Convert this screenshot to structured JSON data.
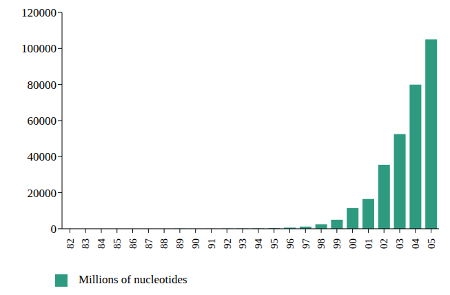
{
  "chart_data": {
    "type": "bar",
    "categories": [
      "82",
      "83",
      "84",
      "85",
      "86",
      "87",
      "88",
      "89",
      "90",
      "91",
      "92",
      "93",
      "94",
      "95",
      "96",
      "97",
      "98",
      "99",
      "00",
      "01",
      "02",
      "03",
      "04",
      "05"
    ],
    "series": [
      {
        "name": "Millions of nucleotides",
        "color": "#2e9b80",
        "values": [
          0.7,
          2,
          3,
          5,
          9,
          15,
          20,
          28,
          40,
          55,
          100,
          150,
          200,
          380,
          650,
          1200,
          2500,
          5000,
          11500,
          16500,
          35500,
          52500,
          80000,
          105000
        ]
      }
    ],
    "ylim": [
      0,
      120000
    ],
    "yticks": [
      0,
      20000,
      40000,
      60000,
      80000,
      100000,
      120000
    ],
    "grid": false,
    "legend": "bottom-left"
  }
}
